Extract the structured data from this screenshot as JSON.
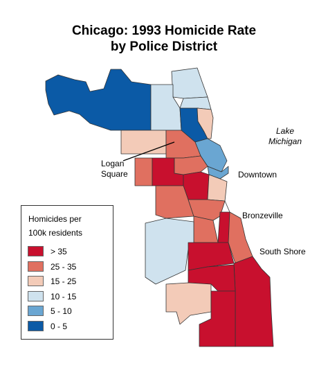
{
  "title_line1": "Chicago: 1993 Homicide Rate",
  "title_line2": "by Police District",
  "labels": {
    "lake_line1": "Lake",
    "lake_line2": "Michigan",
    "logan_line1": "Logan",
    "logan_line2": "Square",
    "downtown": "Downtown",
    "bronzeville": "Bronzeville",
    "south_shore": "South Shore"
  },
  "legend": {
    "title_line1": "Homicides per",
    "title_line2": "100k residents",
    "items": [
      {
        "label": "> 35",
        "color": "#c8102e"
      },
      {
        "label": "25 - 35",
        "color": "#e07060"
      },
      {
        "label": "15 - 25",
        "color": "#f3cbb8"
      },
      {
        "label": "10 - 15",
        "color": "#cfe2ee"
      },
      {
        "label": "5 - 10",
        "color": "#6aa6d2"
      },
      {
        "label": "0 - 5",
        "color": "#0b5aa6"
      }
    ]
  },
  "colors": {
    "c35": "#c8102e",
    "c25": "#e07060",
    "c15": "#f3cbb8",
    "c10": "#cfe2ee",
    "c5": "#6aa6d2",
    "c0": "#0b5aa6"
  }
}
